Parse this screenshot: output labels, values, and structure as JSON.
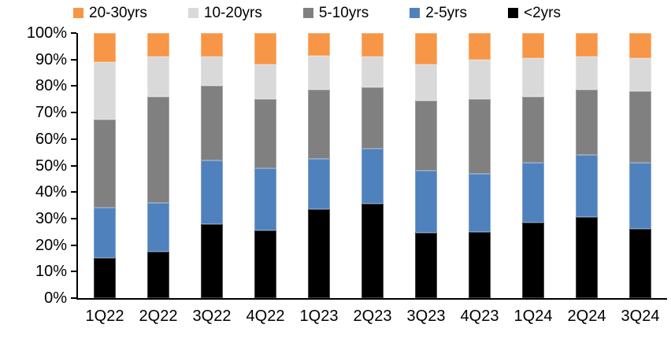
{
  "chart_data": {
    "type": "bar",
    "subtype": "stacked-percent",
    "title": "",
    "xlabel": "",
    "ylabel": "",
    "ylim": [
      0,
      100
    ],
    "ytick_step": 10,
    "ytick_format": "percent",
    "grid": false,
    "legend_position": "top",
    "legend": [
      "20-30yrs",
      "10-20yrs",
      "5-10yrs",
      "2-5yrs",
      "<2yrs"
    ],
    "yticks": [
      "0%",
      "10%",
      "20%",
      "30%",
      "40%",
      "50%",
      "60%",
      "70%",
      "80%",
      "90%",
      "100%"
    ],
    "categories": [
      "1Q22",
      "2Q22",
      "3Q22",
      "4Q22",
      "1Q23",
      "2Q23",
      "3Q23",
      "4Q23",
      "1Q24",
      "2Q24",
      "3Q24"
    ],
    "stack_order": "bottom-to-top",
    "series": [
      {
        "name": "<2yrs",
        "color": "#000000",
        "values": [
          15,
          17.5,
          28,
          25.5,
          33.5,
          35.5,
          24.5,
          25,
          28.5,
          30.5,
          26
        ]
      },
      {
        "name": "2-5yrs",
        "color": "#4F81BD",
        "values": [
          19,
          18.5,
          24,
          23.5,
          19,
          21,
          23.5,
          22,
          22.5,
          23.5,
          25
        ]
      },
      {
        "name": "5-10yrs",
        "color": "#808080",
        "values": [
          33.5,
          40,
          28,
          26,
          26,
          23,
          26.5,
          28,
          25,
          24.5,
          27
        ]
      },
      {
        "name": "10-20yrs",
        "color": "#D9D9D9",
        "values": [
          21.5,
          15,
          11,
          13,
          13,
          11.5,
          13.5,
          15,
          14.5,
          12.5,
          12.5
        ]
      },
      {
        "name": "20-30yrs",
        "color": "#F79646",
        "values": [
          11,
          9,
          9,
          12,
          8.5,
          9,
          12,
          10,
          9.5,
          9,
          9.5
        ]
      }
    ],
    "colors": {
      "black": "#000000",
      "blue": "#4F81BD",
      "dark_gray": "#808080",
      "light_gray": "#D9D9D9",
      "orange": "#F79646",
      "axis": "#000000",
      "background": "#FFFFFF"
    }
  }
}
